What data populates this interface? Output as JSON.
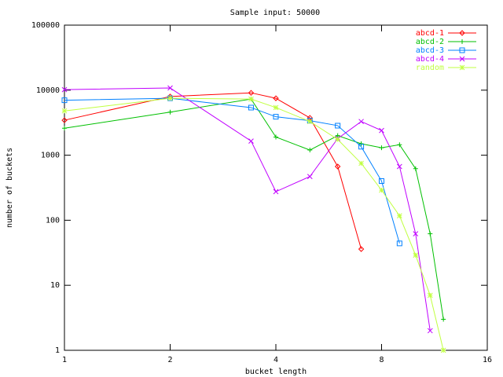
{
  "chart_data": {
    "type": "line",
    "title": "Sample input: 50000",
    "x_label": "bucket length",
    "y_label": "number of buckets",
    "x_log_base": 2,
    "y_log_base": 10,
    "xlim": [
      1,
      16
    ],
    "xticks": [
      1,
      2,
      4,
      8,
      16
    ],
    "ylim": [
      1,
      100000
    ],
    "yticks": [
      1,
      10,
      100,
      1000,
      10000,
      100000
    ],
    "legend": "top-right",
    "series": [
      {
        "name": "abcd-1",
        "color": "#ff0000",
        "marker": "diamond",
        "x": [
          1,
          2,
          3.4,
          4,
          5,
          6,
          7
        ],
        "values": [
          3450,
          8000,
          9100,
          7500,
          3750,
          670,
          36
        ]
      },
      {
        "name": "abcd-2",
        "color": "#00c000",
        "marker": "plus",
        "x": [
          1,
          2,
          3.4,
          4,
          5,
          6,
          7,
          8,
          9,
          10,
          11,
          12
        ],
        "values": [
          2600,
          4600,
          7300,
          1900,
          1200,
          2000,
          1500,
          1300,
          1450,
          620,
          62,
          3
        ]
      },
      {
        "name": "abcd-3",
        "color": "#0080ff",
        "marker": "square",
        "x": [
          1,
          2,
          3.4,
          4,
          5,
          6,
          7,
          8,
          9
        ],
        "values": [
          7000,
          7500,
          5400,
          3900,
          3400,
          2850,
          1350,
          400,
          44
        ]
      },
      {
        "name": "abcd-4",
        "color": "#c000ff",
        "marker": "cross",
        "x": [
          1,
          2,
          3.4,
          4,
          5,
          6,
          7,
          8,
          9,
          10,
          11
        ],
        "values": [
          10200,
          10800,
          1650,
          275,
          470,
          1800,
          3300,
          2400,
          670,
          62,
          2
        ]
      },
      {
        "name": "random",
        "color": "#c0ff40",
        "marker": "star",
        "x": [
          1,
          2,
          3.4,
          4,
          5,
          6,
          7,
          8,
          9,
          10,
          11,
          12
        ],
        "values": [
          4800,
          7500,
          7300,
          5400,
          3300,
          1750,
          750,
          290,
          117,
          29,
          7,
          1
        ]
      }
    ]
  }
}
